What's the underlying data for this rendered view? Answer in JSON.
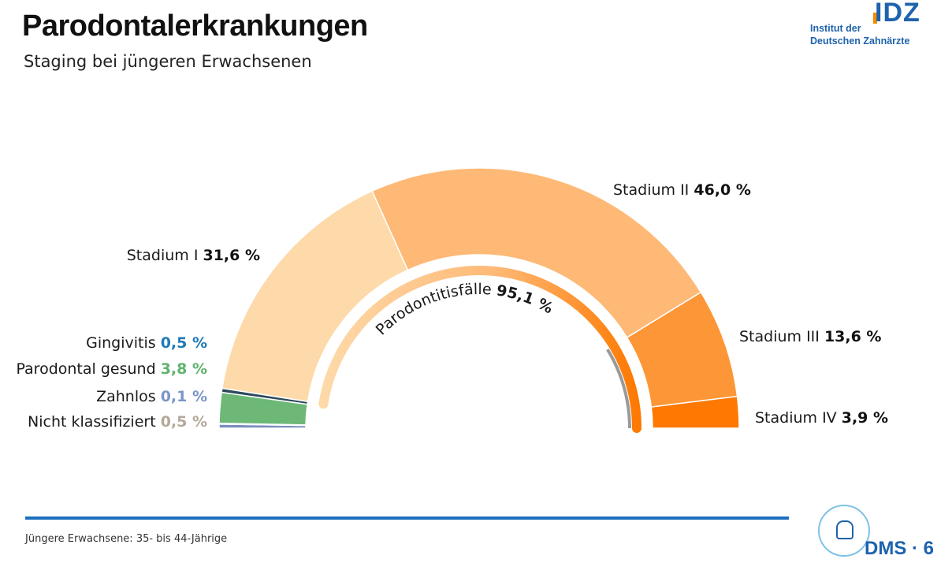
{
  "header": {
    "title": "Parodontalerkrankungen",
    "subtitle": "Staging bei jüngeren Erwachsenen"
  },
  "logo_idz": {
    "line1": "Institut der",
    "line2": "Deutschen Zahnärzte",
    "mark": "IDZ"
  },
  "logo_dms": {
    "text": "DMS · 6"
  },
  "footnote": "Jüngere Erwachsene: 35- bis 44-Jährige",
  "chart_data": {
    "type": "pie",
    "shape": "semicircle-donut",
    "slices": [
      {
        "label": "Nicht klassifiziert",
        "value_text": "0,5 %",
        "value": 0.5,
        "color": "#7a8fbf",
        "label_color": "#b3a99a"
      },
      {
        "label": "Zahnlos",
        "value_text": "0,1 %",
        "value": 0.1,
        "color": "#6f87b8",
        "label_color": "#7a96c8"
      },
      {
        "label": "Parodontal gesund",
        "value_text": "3,8 %",
        "value": 3.8,
        "color": "#6db877",
        "label_color": "#5fb36c"
      },
      {
        "label": "Gingivitis",
        "value_text": "0,5 %",
        "value": 0.5,
        "color": "#2d4a5c",
        "label_color": "#1f7ab8"
      },
      {
        "label": "Stadium I",
        "value_text": "31,6 %",
        "value": 31.6,
        "color": "#fed9a9",
        "label_color": "#111111"
      },
      {
        "label": "Stadium II",
        "value_text": "46,0 %",
        "value": 46.0,
        "color": "#feb976",
        "label_color": "#111111"
      },
      {
        "label": "Stadium III",
        "value_text": "13,6 %",
        "value": 13.6,
        "color": "#fd9636",
        "label_color": "#111111"
      },
      {
        "label": "Stadium IV",
        "value_text": "3,9 %",
        "value": 3.9,
        "color": "#fd7902",
        "label_color": "#111111"
      }
    ],
    "group_arc": {
      "label": "Parodontitisfälle",
      "value_text": "95,1 %",
      "value": 95.1
    }
  }
}
